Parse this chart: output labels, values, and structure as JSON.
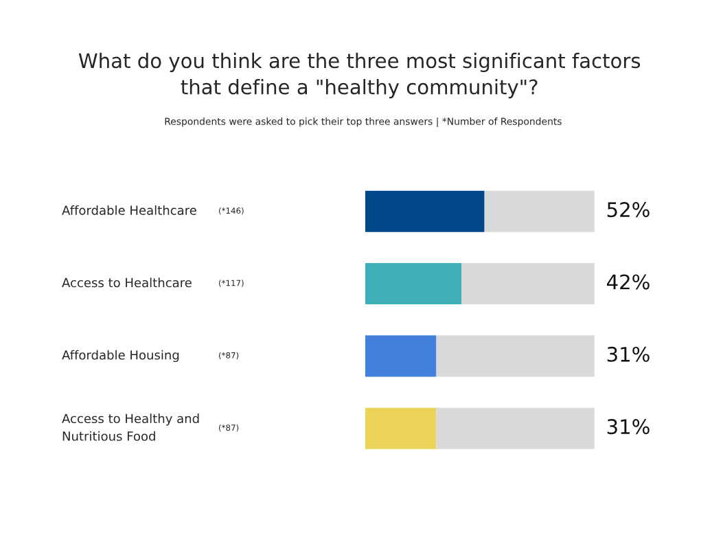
{
  "chart_data": {
    "type": "bar",
    "orientation": "horizontal",
    "stacked": true,
    "title": "What do you think are the three most significant factors\nthat define a \"healthy community\"?",
    "subtitle": "Respondents were asked to pick their top three answers | *Number of Respondents",
    "categories": [
      "Affordable Healthcare",
      "Access to Healthcare",
      "Affordable Housing",
      "Access to Healthy and\nNutritious Food"
    ],
    "series": [
      {
        "colors": [
          "#00468b",
          "#40b0b8",
          "#4280dc",
          "#ecd35a"
        ],
        "values": [
          52,
          42,
          31,
          31
        ],
        "value_labels": [
          "52%",
          "42%",
          "31%",
          "31%"
        ]
      },
      {
        "color": "#d9d9d9",
        "values": [
          48,
          58,
          69,
          69
        ]
      }
    ],
    "annotations": [
      "(*146)",
      "(*117)",
      "(*87)",
      "(*87)"
    ],
    "tick_labels": false
  }
}
